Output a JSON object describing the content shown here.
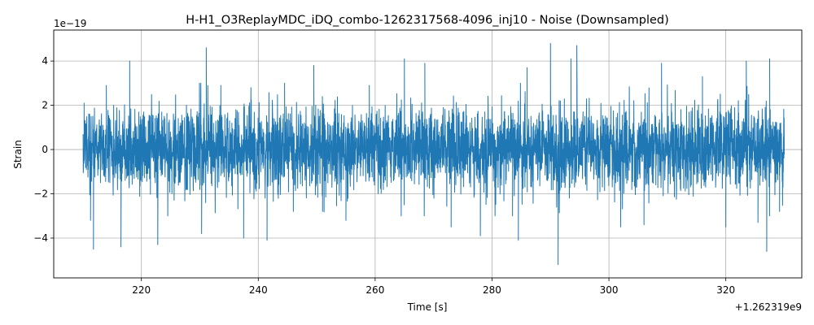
{
  "chart_data": {
    "type": "line",
    "title": "H-H1_O3ReplayMDC_iDQ_combo-1262317568-4096_inj10 - Noise (Downsampled)",
    "xlabel": "Time [s]",
    "ylabel": "Strain",
    "x_offset_text": "+1.262319e9",
    "y_scale_text": "1e−19",
    "x_ticks": [
      220,
      240,
      260,
      280,
      300,
      320
    ],
    "x_tick_labels": [
      "220",
      "240",
      "260",
      "280",
      "300",
      "320"
    ],
    "y_ticks": [
      -4,
      -2,
      0,
      2,
      4
    ],
    "y_tick_labels": [
      "−4",
      "−2",
      "0",
      "2",
      "4"
    ],
    "xlim": [
      205,
      333
    ],
    "ylim": [
      -5.8,
      5.4
    ],
    "x_range_data": [
      210,
      330
    ],
    "y_envelope_typical": [
      -2.2,
      2.2
    ],
    "grid": true,
    "line_color": "#1f77b4",
    "series": [
      {
        "x_start": 210,
        "x_end": 330,
        "peaks": [
          {
            "x": 210.2,
            "y": 2.1
          },
          {
            "x": 211.3,
            "y": -3.2
          },
          {
            "x": 211.8,
            "y": -4.5
          },
          {
            "x": 214,
            "y": 2.9
          },
          {
            "x": 216.5,
            "y": -4.4
          },
          {
            "x": 218,
            "y": 4.0
          },
          {
            "x": 222.8,
            "y": -4.3
          },
          {
            "x": 230.3,
            "y": -3.8
          },
          {
            "x": 231.1,
            "y": 4.6
          },
          {
            "x": 233.6,
            "y": 2.9
          },
          {
            "x": 237.5,
            "y": -4.0
          },
          {
            "x": 241.5,
            "y": -4.1
          },
          {
            "x": 244.5,
            "y": 3.0
          },
          {
            "x": 249.5,
            "y": 3.8
          },
          {
            "x": 251,
            "y": -2.8
          },
          {
            "x": 255,
            "y": -3.2
          },
          {
            "x": 259,
            "y": 2.9
          },
          {
            "x": 265,
            "y": 4.1
          },
          {
            "x": 268.5,
            "y": 3.9
          },
          {
            "x": 273,
            "y": -3.5
          },
          {
            "x": 278,
            "y": -3.9
          },
          {
            "x": 283.5,
            "y": -3.0
          },
          {
            "x": 284.5,
            "y": -4.1
          },
          {
            "x": 286,
            "y": 3.7
          },
          {
            "x": 290,
            "y": 4.8
          },
          {
            "x": 291.3,
            "y": -5.2
          },
          {
            "x": 293.5,
            "y": 4.1
          },
          {
            "x": 294.5,
            "y": 4.7
          },
          {
            "x": 302,
            "y": -3.5
          },
          {
            "x": 306,
            "y": -3.4
          },
          {
            "x": 309,
            "y": 3.9
          },
          {
            "x": 316,
            "y": 3.3
          },
          {
            "x": 320,
            "y": -3.5
          },
          {
            "x": 323.5,
            "y": 4.0
          },
          {
            "x": 325.5,
            "y": -3.3
          },
          {
            "x": 327,
            "y": -4.6
          },
          {
            "x": 327.5,
            "y": 4.1
          },
          {
            "x": 329.2,
            "y": -2.8
          }
        ]
      }
    ]
  }
}
